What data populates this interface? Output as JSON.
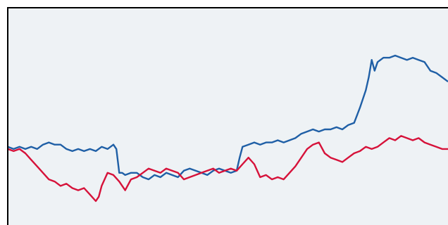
{
  "chart_data": {
    "type": "line",
    "title": "",
    "xlabel": "",
    "ylabel": "",
    "grid": false,
    "legend": "none",
    "xlim": [
      0,
      150
    ],
    "ylim": [
      0,
      100
    ],
    "colors": {
      "background": "#eef2f5",
      "frame": "#000000",
      "blue": "#1f5fa6",
      "red": "#d6123a"
    },
    "series": [
      {
        "color": "#1f5fa6",
        "points": [
          [
            0,
            36
          ],
          [
            2,
            35
          ],
          [
            4,
            36
          ],
          [
            6,
            35
          ],
          [
            8,
            36
          ],
          [
            10,
            35
          ],
          [
            12,
            37
          ],
          [
            14,
            38
          ],
          [
            16,
            37
          ],
          [
            18,
            37
          ],
          [
            20,
            35
          ],
          [
            22,
            34
          ],
          [
            24,
            35
          ],
          [
            26,
            34
          ],
          [
            28,
            35
          ],
          [
            30,
            34
          ],
          [
            32,
            36
          ],
          [
            34,
            35
          ],
          [
            36,
            37
          ],
          [
            37,
            35
          ],
          [
            38,
            24
          ],
          [
            39,
            24
          ],
          [
            40,
            23
          ],
          [
            42,
            24
          ],
          [
            44,
            24
          ],
          [
            46,
            22
          ],
          [
            48,
            21
          ],
          [
            50,
            23
          ],
          [
            52,
            22
          ],
          [
            54,
            24
          ],
          [
            56,
            23
          ],
          [
            58,
            22
          ],
          [
            60,
            25
          ],
          [
            62,
            26
          ],
          [
            64,
            25
          ],
          [
            66,
            24
          ],
          [
            68,
            23
          ],
          [
            70,
            25
          ],
          [
            72,
            26
          ],
          [
            74,
            25
          ],
          [
            76,
            24
          ],
          [
            78,
            25
          ],
          [
            79,
            31
          ],
          [
            80,
            36
          ],
          [
            82,
            37
          ],
          [
            84,
            38
          ],
          [
            86,
            37
          ],
          [
            88,
            38
          ],
          [
            90,
            38
          ],
          [
            92,
            39
          ],
          [
            94,
            38
          ],
          [
            96,
            39
          ],
          [
            98,
            40
          ],
          [
            100,
            42
          ],
          [
            102,
            43
          ],
          [
            104,
            44
          ],
          [
            106,
            43
          ],
          [
            108,
            44
          ],
          [
            110,
            44
          ],
          [
            112,
            45
          ],
          [
            114,
            44
          ],
          [
            116,
            46
          ],
          [
            118,
            47
          ],
          [
            120,
            54
          ],
          [
            122,
            62
          ],
          [
            123,
            68
          ],
          [
            124,
            76
          ],
          [
            125,
            71
          ],
          [
            126,
            75
          ],
          [
            128,
            77
          ],
          [
            130,
            77
          ],
          [
            132,
            78
          ],
          [
            134,
            77
          ],
          [
            136,
            76
          ],
          [
            138,
            77
          ],
          [
            140,
            76
          ],
          [
            142,
            75
          ],
          [
            144,
            71
          ],
          [
            146,
            70
          ],
          [
            148,
            68
          ],
          [
            150,
            66
          ]
        ]
      },
      {
        "color": "#d6123a",
        "points": [
          [
            0,
            35
          ],
          [
            2,
            34
          ],
          [
            4,
            35
          ],
          [
            6,
            33
          ],
          [
            8,
            30
          ],
          [
            10,
            27
          ],
          [
            12,
            24
          ],
          [
            14,
            21
          ],
          [
            16,
            20
          ],
          [
            18,
            18
          ],
          [
            20,
            19
          ],
          [
            22,
            17
          ],
          [
            24,
            16
          ],
          [
            26,
            17
          ],
          [
            28,
            14
          ],
          [
            30,
            11
          ],
          [
            31,
            13
          ],
          [
            32,
            18
          ],
          [
            34,
            24
          ],
          [
            36,
            23
          ],
          [
            38,
            20
          ],
          [
            40,
            16
          ],
          [
            42,
            21
          ],
          [
            44,
            22
          ],
          [
            46,
            24
          ],
          [
            48,
            26
          ],
          [
            50,
            25
          ],
          [
            52,
            24
          ],
          [
            54,
            26
          ],
          [
            56,
            25
          ],
          [
            58,
            24
          ],
          [
            60,
            21
          ],
          [
            62,
            22
          ],
          [
            64,
            23
          ],
          [
            66,
            24
          ],
          [
            68,
            25
          ],
          [
            70,
            26
          ],
          [
            72,
            24
          ],
          [
            74,
            25
          ],
          [
            76,
            26
          ],
          [
            78,
            25
          ],
          [
            80,
            28
          ],
          [
            82,
            31
          ],
          [
            84,
            28
          ],
          [
            86,
            22
          ],
          [
            88,
            23
          ],
          [
            90,
            21
          ],
          [
            92,
            22
          ],
          [
            94,
            21
          ],
          [
            96,
            24
          ],
          [
            98,
            27
          ],
          [
            100,
            31
          ],
          [
            102,
            35
          ],
          [
            104,
            37
          ],
          [
            106,
            38
          ],
          [
            108,
            33
          ],
          [
            110,
            31
          ],
          [
            112,
            30
          ],
          [
            114,
            29
          ],
          [
            116,
            31
          ],
          [
            118,
            33
          ],
          [
            120,
            34
          ],
          [
            122,
            36
          ],
          [
            124,
            35
          ],
          [
            126,
            36
          ],
          [
            128,
            38
          ],
          [
            130,
            40
          ],
          [
            132,
            39
          ],
          [
            134,
            41
          ],
          [
            136,
            40
          ],
          [
            138,
            39
          ],
          [
            140,
            40
          ],
          [
            142,
            38
          ],
          [
            144,
            37
          ],
          [
            146,
            36
          ],
          [
            148,
            35
          ],
          [
            150,
            35
          ]
        ]
      }
    ]
  }
}
